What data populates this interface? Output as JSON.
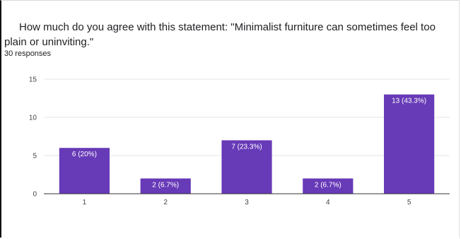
{
  "question": "How much do you agree with this statement: \"Minimalist furniture can sometimes feel too plain or uninviting.\"",
  "responses": "30 responses",
  "colors": {
    "bar": "#673ab7",
    "grid": "#e6e6e6",
    "axis": "#333333"
  },
  "chart_data": {
    "type": "bar",
    "title": "",
    "xlabel": "",
    "ylabel": "",
    "categories": [
      "1",
      "2",
      "3",
      "4",
      "5"
    ],
    "values": [
      6,
      2,
      7,
      2,
      13
    ],
    "data_labels": [
      "6 (20%)",
      "2 (6.7%)",
      "7 (23.3%)",
      "2 (6.7%)",
      "13 (43.3%)"
    ],
    "ylim": [
      0,
      15
    ],
    "yticks": [
      0,
      5,
      10,
      15
    ],
    "grid": true,
    "legend": "none"
  }
}
